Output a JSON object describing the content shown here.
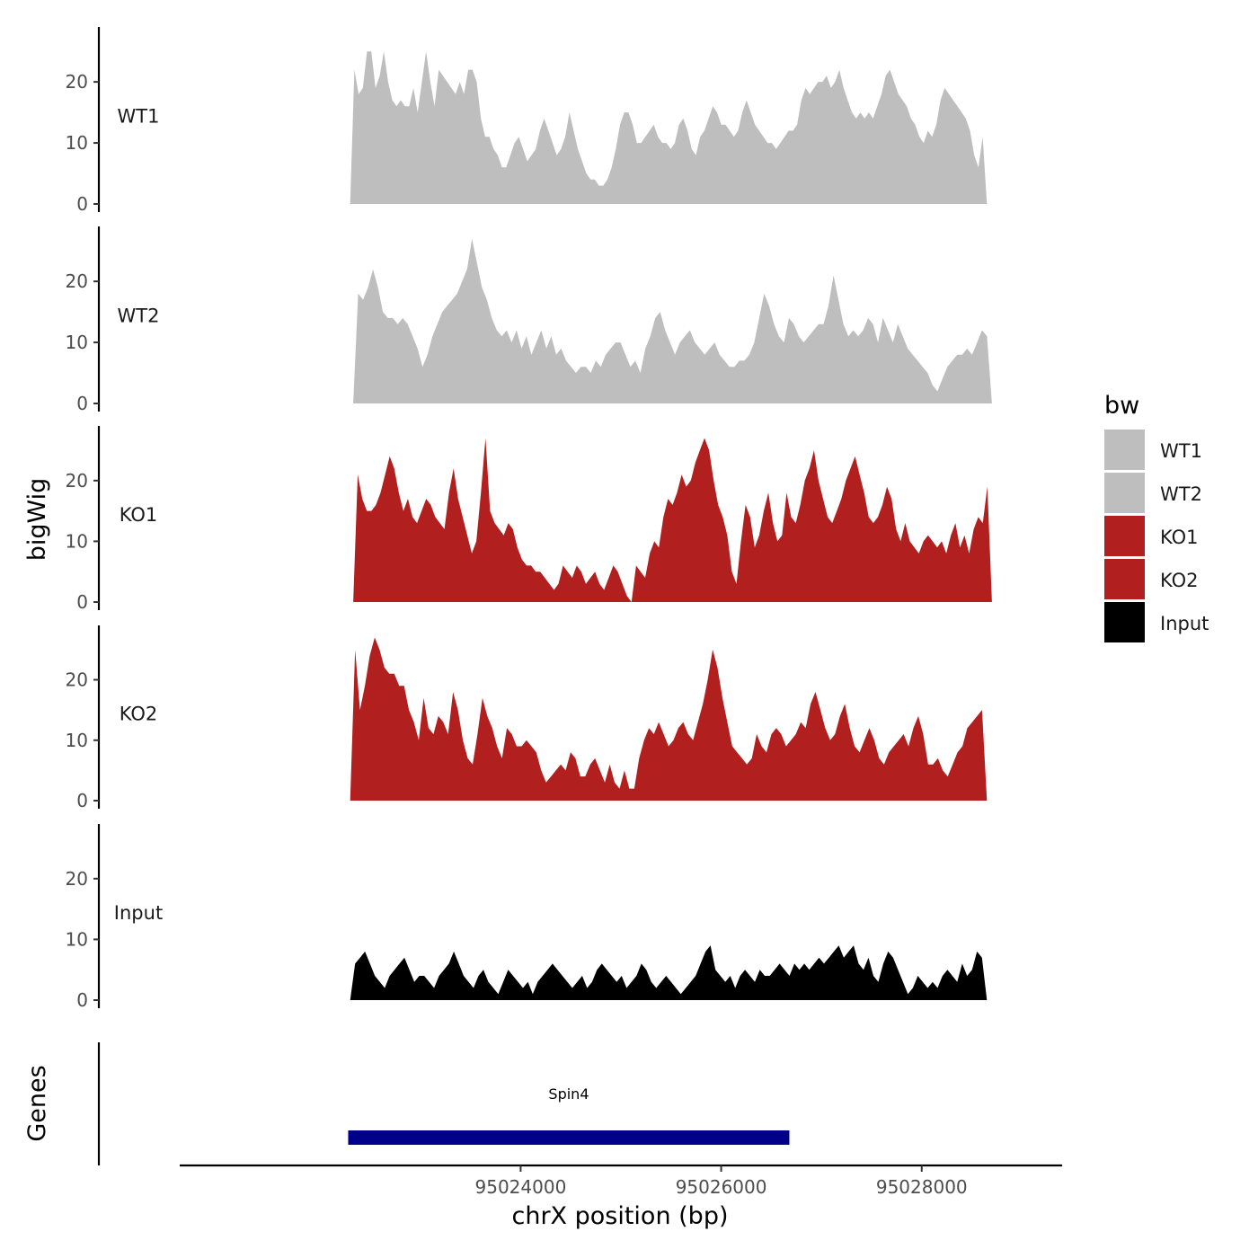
{
  "chart_data": {
    "type": "area",
    "xlabel": "chrX position (bp)",
    "ylabel": "bigWig",
    "genes_panel_label": "Genes",
    "xlim": [
      95020600,
      95029400
    ],
    "x_ticks": [
      95024000,
      95026000,
      95028000
    ],
    "x_tick_labels": [
      "95024000",
      "95026000",
      "95028000"
    ],
    "ylim": [
      0,
      29
    ],
    "y_ticks": [
      0,
      10,
      20
    ],
    "y_tick_labels": [
      "0",
      "10",
      "20"
    ],
    "legend": {
      "title": "bw",
      "placement": "right",
      "entries": [
        {
          "label": "WT1",
          "color": "#bebebe"
        },
        {
          "label": "WT2",
          "color": "#bebebe"
        },
        {
          "label": "KO1",
          "color": "#b21f1f"
        },
        {
          "label": "KO2",
          "color": "#b21f1f"
        },
        {
          "label": "Input",
          "color": "#000000"
        }
      ]
    },
    "series": [
      {
        "name": "WT1",
        "color": "#bebebe",
        "x_start": 95022300,
        "x_end": 95028650,
        "values": [
          0,
          22,
          18,
          19,
          25,
          25,
          19,
          21,
          25,
          20,
          17,
          16,
          17,
          16,
          16,
          19,
          15,
          20,
          25,
          20,
          16,
          22,
          21,
          20,
          19,
          18,
          20,
          18,
          22,
          22,
          20,
          14,
          11,
          11,
          9,
          8,
          6,
          6,
          8,
          10,
          11,
          9,
          7,
          8,
          9,
          12,
          14,
          12,
          10,
          8,
          9,
          11,
          15,
          12,
          9,
          7,
          5,
          4,
          4,
          3,
          3,
          4,
          6,
          9,
          13,
          15,
          15,
          13,
          10,
          10,
          11,
          12,
          13,
          11,
          10,
          10,
          9,
          10,
          13,
          14,
          12,
          9,
          8,
          11,
          12,
          14,
          16,
          15,
          13,
          13,
          12,
          11,
          12,
          15,
          17,
          15,
          13,
          12,
          11,
          10,
          10,
          9,
          10,
          11,
          12,
          12,
          13,
          17,
          19,
          18,
          19,
          20,
          20,
          21,
          19,
          20,
          22,
          19,
          17,
          15,
          14,
          15,
          14,
          15,
          14,
          16,
          18,
          21,
          22,
          20,
          18,
          17,
          16,
          14,
          13,
          11,
          10,
          12,
          11,
          13,
          17,
          19,
          18,
          17,
          16,
          15,
          14,
          12,
          8,
          6,
          11,
          0
        ]
      },
      {
        "name": "WT2",
        "color": "#bebebe",
        "x_start": 95022330,
        "x_end": 95028700,
        "values": [
          0,
          18,
          17,
          19,
          22,
          19,
          15,
          14,
          14,
          13,
          14,
          13,
          11,
          9,
          6,
          8,
          11,
          13,
          15,
          16,
          17,
          18,
          20,
          22,
          27,
          23,
          19,
          17,
          14,
          12,
          11,
          12,
          10,
          12,
          9,
          11,
          8,
          10,
          12,
          9,
          11,
          8,
          9,
          7,
          6,
          5,
          6,
          6,
          5,
          7,
          6,
          8,
          9,
          10,
          10,
          8,
          6,
          7,
          5,
          9,
          11,
          14,
          15,
          12,
          10,
          8,
          10,
          11,
          12,
          10,
          9,
          8,
          9,
          10,
          8,
          7,
          6,
          6,
          7,
          7,
          8,
          10,
          14,
          18,
          16,
          13,
          11,
          10,
          14,
          13,
          11,
          10,
          11,
          12,
          13,
          13,
          16,
          21,
          17,
          13,
          11,
          12,
          11,
          12,
          14,
          13,
          10,
          14,
          12,
          10,
          13,
          11,
          9,
          8,
          7,
          6,
          5,
          3,
          2,
          4,
          6,
          7,
          8,
          8,
          9,
          8,
          10,
          12,
          11,
          0
        ]
      },
      {
        "name": "KO1",
        "color": "#b21f1f",
        "x_start": 95022330,
        "x_end": 95028700,
        "values": [
          0,
          21,
          17,
          15,
          15,
          16,
          18,
          21,
          24,
          22,
          18,
          15,
          17,
          14,
          13,
          15,
          17,
          16,
          14,
          13,
          12,
          18,
          22,
          17,
          14,
          11,
          8,
          10,
          18,
          27,
          15,
          13,
          12,
          11,
          13,
          12,
          9,
          7,
          6,
          6,
          5,
          5,
          4,
          3,
          2,
          3,
          6,
          5,
          4,
          6,
          5,
          3,
          4,
          5,
          3,
          2,
          4,
          6,
          5,
          3,
          1,
          0,
          6,
          5,
          4,
          8,
          10,
          9,
          14,
          17,
          16,
          18,
          21,
          19,
          20,
          23,
          25,
          27,
          25,
          20,
          16,
          14,
          11,
          5,
          3,
          10,
          16,
          14,
          9,
          11,
          15,
          18,
          13,
          10,
          11,
          18,
          14,
          13,
          16,
          20,
          22,
          25,
          20,
          17,
          14,
          13,
          15,
          17,
          20,
          22,
          24,
          21,
          18,
          14,
          13,
          14,
          16,
          19,
          17,
          12,
          10,
          13,
          10,
          9,
          8,
          10,
          11,
          10,
          9,
          10,
          8,
          11,
          13,
          9,
          11,
          8,
          12,
          14,
          13,
          19,
          0
        ]
      },
      {
        "name": "KO2",
        "color": "#b21f1f",
        "x_start": 95022300,
        "x_end": 95028650,
        "values": [
          0,
          25,
          15,
          19,
          24,
          27,
          25,
          22,
          21,
          21,
          19,
          19,
          15,
          13,
          10,
          17,
          12,
          11,
          14,
          13,
          11,
          18,
          15,
          10,
          7,
          6,
          11,
          17,
          14,
          12,
          9,
          7,
          12,
          11,
          9,
          9,
          10,
          9,
          8,
          5,
          3,
          4,
          5,
          6,
          5,
          8,
          7,
          4,
          4,
          6,
          7,
          5,
          3,
          6,
          3,
          2,
          5,
          2,
          2,
          7,
          10,
          12,
          11,
          13,
          11,
          9,
          10,
          12,
          13,
          11,
          10,
          13,
          16,
          20,
          25,
          22,
          17,
          13,
          9,
          8,
          7,
          6,
          7,
          11,
          9,
          8,
          11,
          12,
          11,
          9,
          10,
          11,
          13,
          12,
          16,
          18,
          15,
          12,
          10,
          11,
          14,
          16,
          12,
          9,
          8,
          10,
          12,
          10,
          7,
          6,
          8,
          9,
          10,
          11,
          9,
          12,
          14,
          11,
          6,
          6,
          7,
          5,
          4,
          6,
          8,
          9,
          12,
          13,
          14,
          15,
          0
        ]
      },
      {
        "name": "Input",
        "color": "#000000",
        "x_start": 95022300,
        "x_end": 95028650,
        "values": [
          0,
          6,
          7,
          8,
          6,
          4,
          3,
          2,
          4,
          5,
          6,
          7,
          5,
          3,
          4,
          4,
          3,
          2,
          4,
          5,
          6,
          8,
          6,
          4,
          3,
          2,
          4,
          5,
          3,
          2,
          1,
          3,
          5,
          4,
          3,
          2,
          3,
          1,
          3,
          4,
          5,
          6,
          5,
          4,
          3,
          2,
          3,
          4,
          2,
          3,
          5,
          6,
          5,
          4,
          3,
          4,
          2,
          3,
          4,
          6,
          5,
          3,
          2,
          3,
          4,
          3,
          2,
          1,
          2,
          3,
          4,
          6,
          8,
          9,
          5,
          4,
          3,
          4,
          2,
          4,
          5,
          4,
          3,
          5,
          4,
          4,
          5,
          6,
          5,
          4,
          6,
          5,
          6,
          5,
          6,
          7,
          6,
          7,
          8,
          9,
          7,
          8,
          9,
          6,
          5,
          7,
          4,
          3,
          6,
          8,
          7,
          5,
          3,
          1,
          2,
          4,
          3,
          2,
          3,
          2,
          4,
          5,
          4,
          3,
          6,
          4,
          5,
          8,
          7,
          0
        ]
      }
    ],
    "gene": {
      "name": "Spin4",
      "start": 95022280,
      "end": 95026680,
      "color": "#00008b"
    }
  }
}
